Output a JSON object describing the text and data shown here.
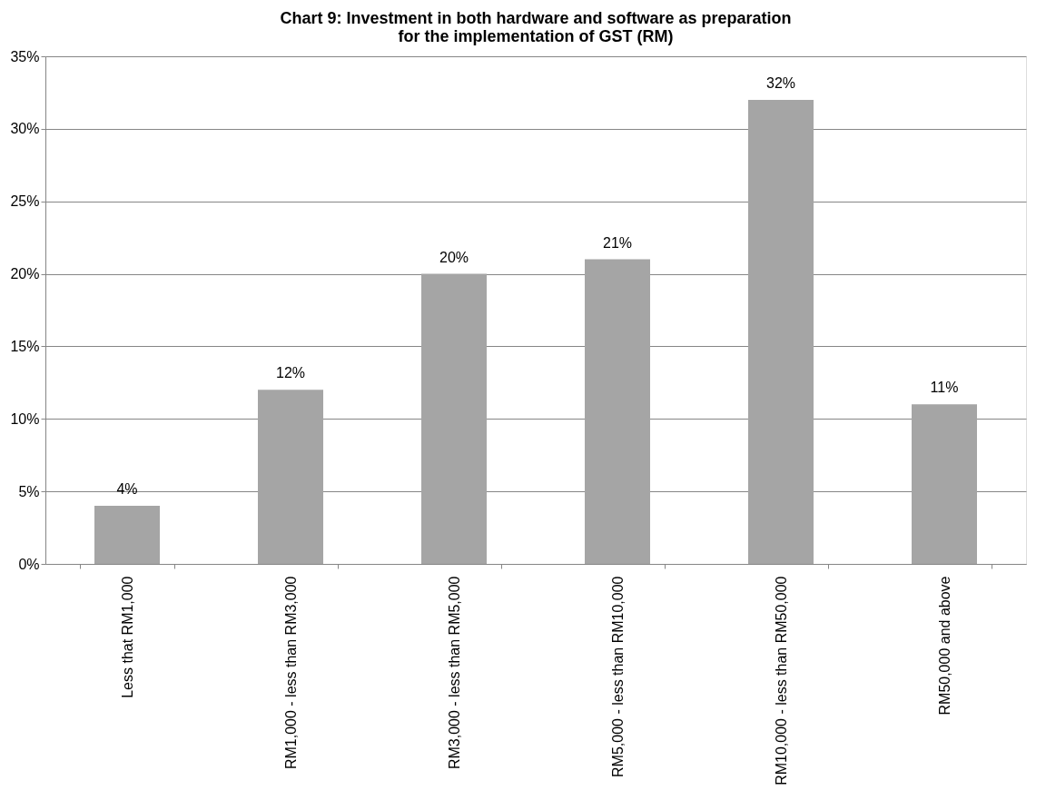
{
  "chart_data": {
    "type": "bar",
    "title": "Chart  9:  Investment in both hardware and software as preparation for the implementation of GST (RM)",
    "categories": [
      "Less that RM1,000",
      "RM1,000 - less than RM3,000",
      "RM3,000 - less than RM5,000",
      "RM5,000 - less than RM10,000",
      "RM10,000 - less than RM50,000",
      "RM50,000 and above"
    ],
    "values": [
      4,
      12,
      20,
      21,
      32,
      11
    ],
    "value_labels": [
      "4%",
      "12%",
      "20%",
      "21%",
      "32%",
      "11%"
    ],
    "color": "#a5a5a5",
    "ylim": [
      0,
      35
    ],
    "yticks": [
      {
        "value": 0,
        "label": "0%"
      },
      {
        "value": 5,
        "label": "5%"
      },
      {
        "value": 10,
        "label": "10%"
      },
      {
        "value": 15,
        "label": "15%"
      },
      {
        "value": 20,
        "label": "20%"
      },
      {
        "value": 25,
        "label": "25%"
      },
      {
        "value": 30,
        "label": "30%"
      },
      {
        "value": 35,
        "label": "35%"
      }
    ],
    "grid": "y"
  }
}
